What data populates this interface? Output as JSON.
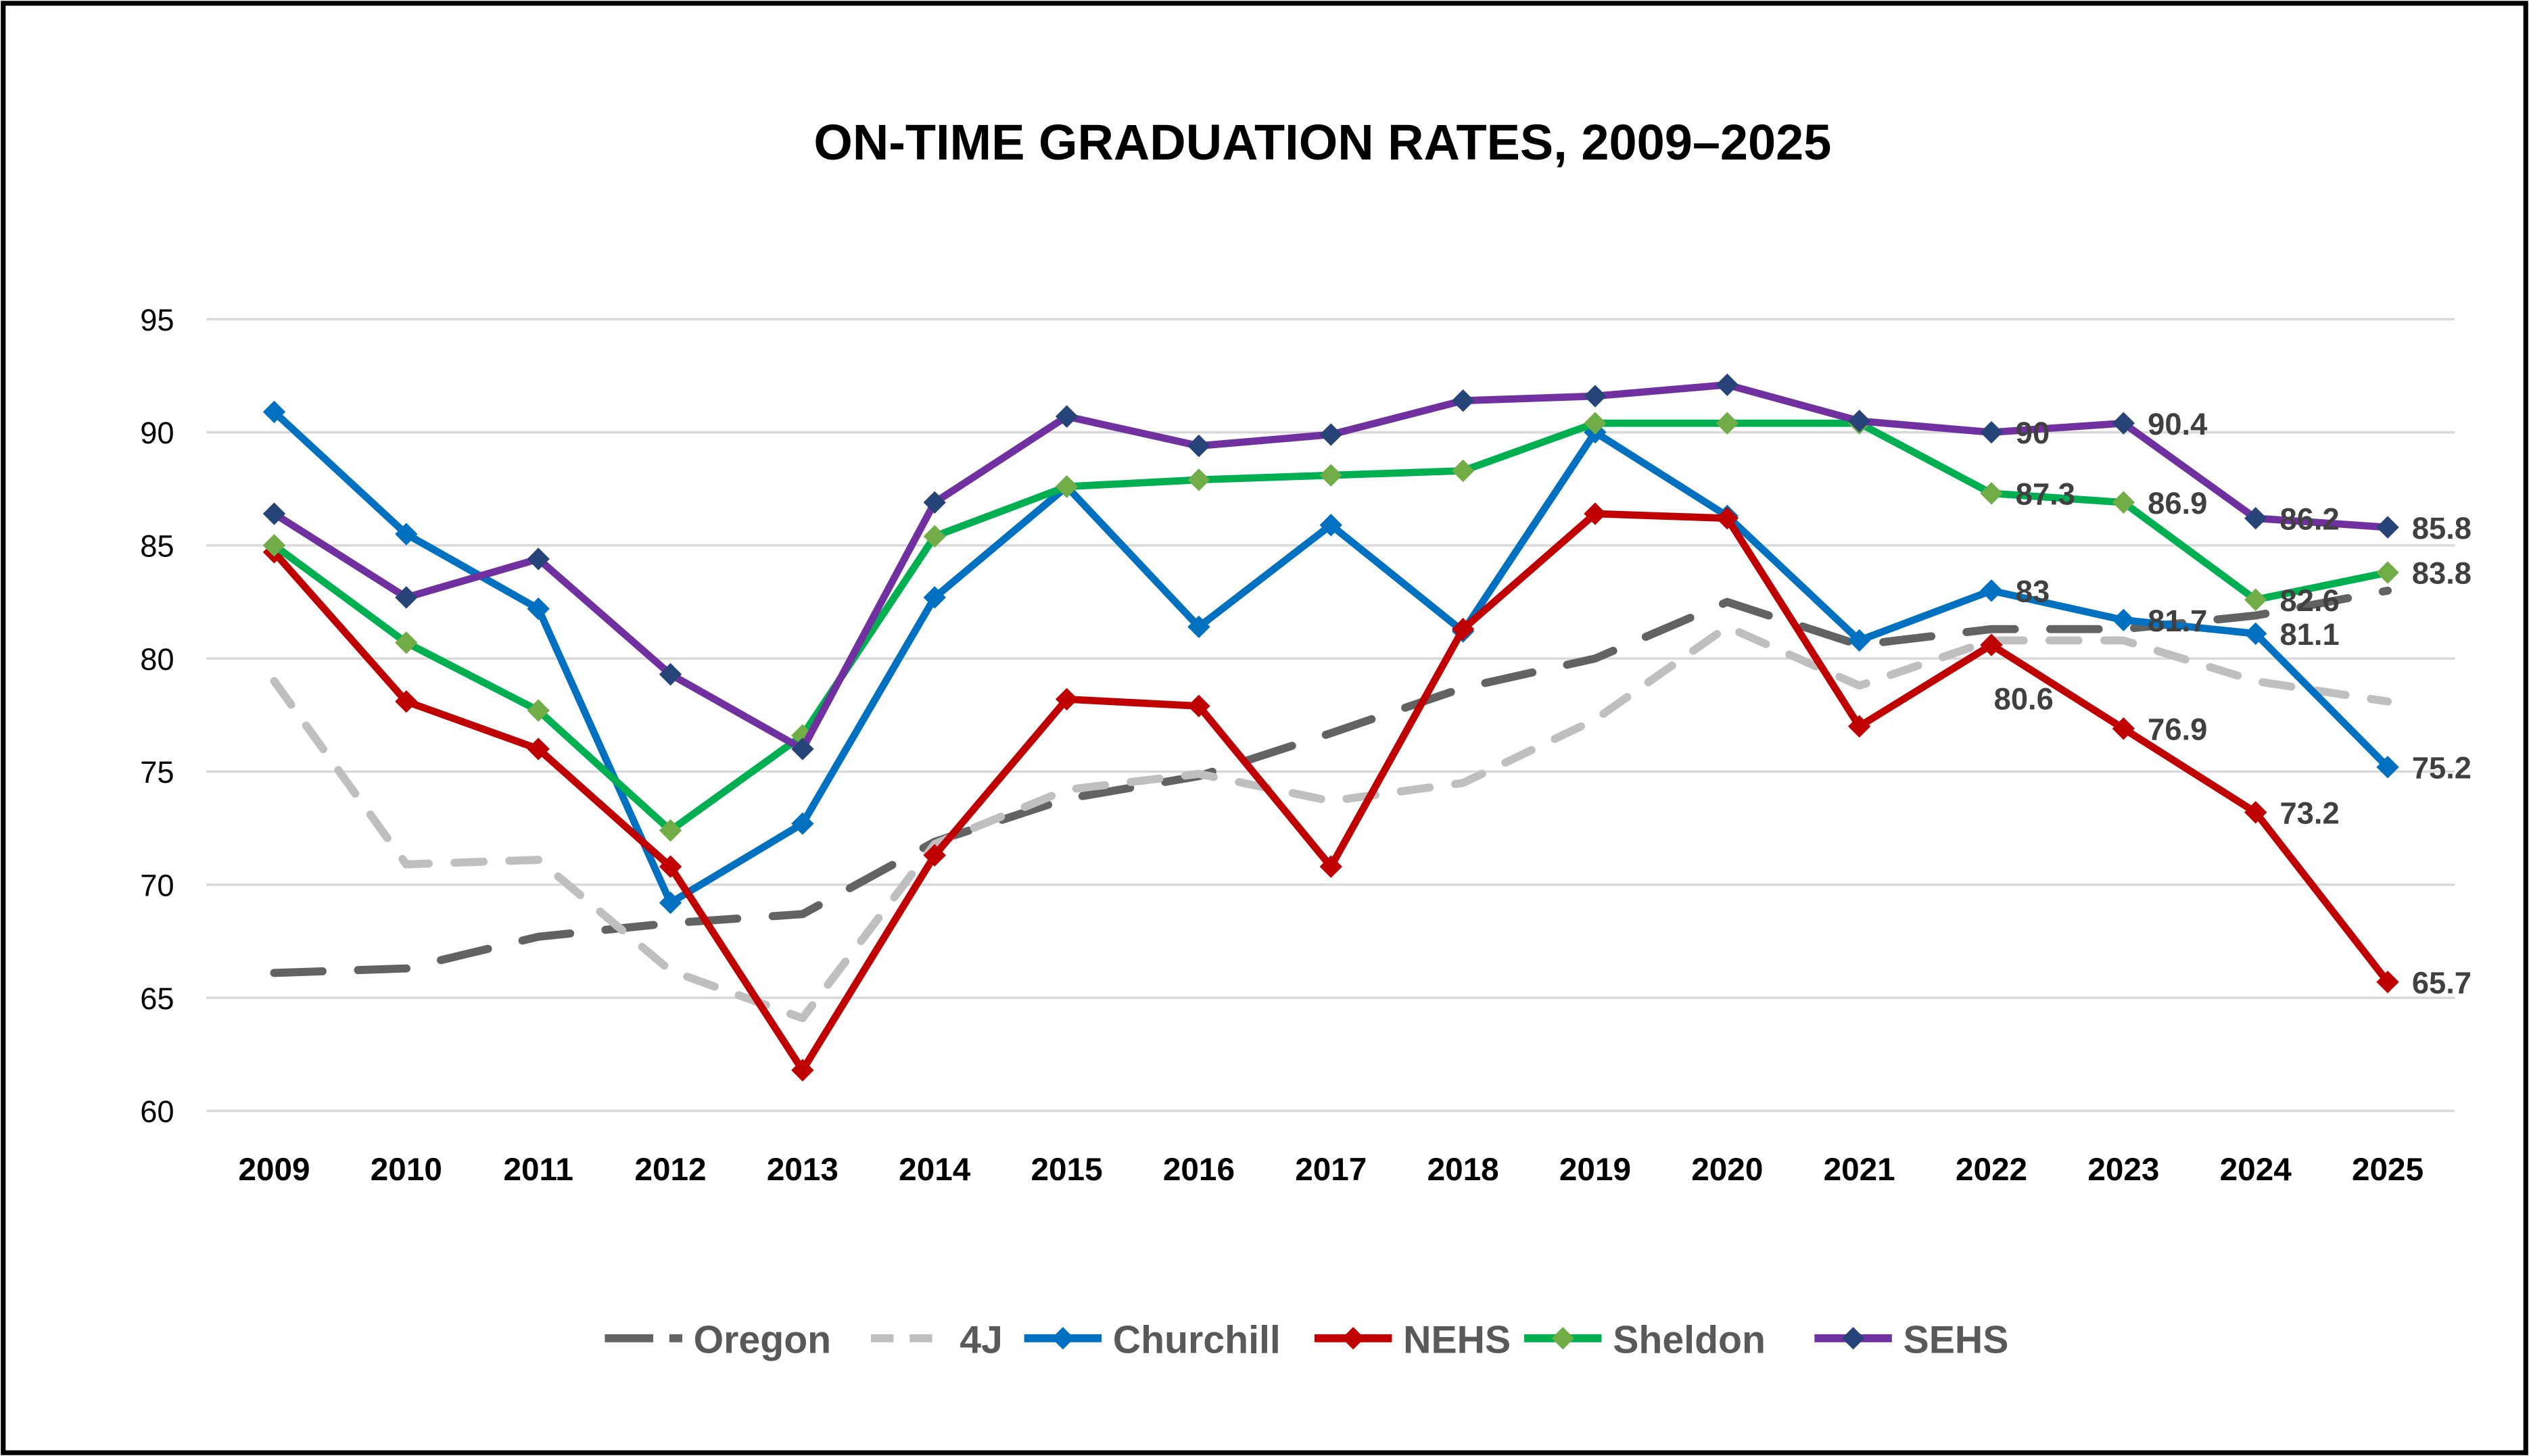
{
  "chart_data": {
    "type": "line",
    "title": "ON-TIME GRADUATION RATES, 2009–2025",
    "xlabel": "",
    "ylabel": "",
    "ylim": [
      60,
      95
    ],
    "yticks": [
      60,
      65,
      70,
      75,
      80,
      85,
      90,
      95
    ],
    "grid": true,
    "legend_position": "bottom",
    "categories": [
      "2009",
      "2010",
      "2011",
      "2012",
      "2013",
      "2014",
      "2015",
      "2016",
      "2017",
      "2018",
      "2019",
      "2020",
      "2021",
      "2022",
      "2023",
      "2024",
      "2025"
    ],
    "series": [
      {
        "name": "Oregon",
        "color": "#626262",
        "dash": "long-dash",
        "markers": false,
        "values": [
          66.1,
          66.3,
          67.7,
          68.3,
          68.7,
          71.9,
          73.8,
          74.8,
          76.7,
          78.7,
          80.0,
          82.5,
          80.6,
          81.3,
          81.3,
          81.9,
          83.0
        ],
        "labels": []
      },
      {
        "name": "4J",
        "color": "#bfbfbf",
        "dash": "dash",
        "markers": false,
        "values": [
          79.0,
          70.9,
          71.1,
          66.2,
          64.1,
          71.8,
          74.2,
          74.9,
          73.7,
          74.5,
          77.3,
          81.4,
          78.8,
          80.8,
          80.8,
          79.0,
          78.1
        ],
        "labels": []
      },
      {
        "name": "Churchill",
        "color": "#0070c0",
        "marker_color": "#0070c0",
        "dash": "solid",
        "markers": true,
        "values": [
          90.9,
          85.5,
          82.2,
          69.2,
          72.7,
          82.7,
          87.6,
          81.4,
          85.9,
          81.2,
          90.0,
          86.3,
          80.8,
          83.0,
          81.7,
          81.1,
          75.2
        ],
        "labels": [
          {
            "year": "2022",
            "text": "83"
          },
          {
            "year": "2023",
            "text": "81.7"
          },
          {
            "year": "2024",
            "text": "81.1"
          },
          {
            "year": "2025",
            "text": "75.2"
          }
        ]
      },
      {
        "name": "NEHS",
        "color": "#c00000",
        "marker_color": "#c00000",
        "dash": "solid",
        "markers": true,
        "values": [
          84.7,
          78.1,
          76.0,
          70.8,
          61.8,
          71.3,
          78.2,
          77.9,
          70.8,
          81.3,
          86.4,
          86.2,
          77.0,
          80.6,
          76.9,
          73.2,
          65.7
        ],
        "labels": [
          {
            "year": "2022",
            "text": "80.6"
          },
          {
            "year": "2023",
            "text": "76.9"
          },
          {
            "year": "2024",
            "text": "73.2"
          },
          {
            "year": "2025",
            "text": "65.7"
          }
        ]
      },
      {
        "name": "Sheldon",
        "color": "#00b050",
        "marker_color": "#70ad47",
        "dash": "solid",
        "markers": true,
        "values": [
          85.0,
          80.7,
          77.7,
          72.4,
          76.6,
          85.4,
          87.6,
          87.9,
          88.1,
          88.3,
          90.4,
          90.4,
          90.4,
          87.3,
          86.9,
          82.6,
          83.8
        ],
        "labels": [
          {
            "year": "2022",
            "text": "87.3"
          },
          {
            "year": "2023",
            "text": "86.9"
          },
          {
            "year": "2024",
            "text": "82.6"
          },
          {
            "year": "2025",
            "text": "83.8"
          }
        ]
      },
      {
        "name": "SEHS",
        "color": "#7030a0",
        "marker_color": "#264478",
        "dash": "solid",
        "markers": true,
        "values": [
          86.4,
          82.7,
          84.4,
          79.3,
          76.0,
          86.9,
          90.7,
          89.4,
          89.9,
          91.4,
          91.6,
          92.1,
          90.5,
          90.0,
          90.4,
          86.2,
          85.8
        ],
        "labels": [
          {
            "year": "2022",
            "text": "90"
          },
          {
            "year": "2023",
            "text": "90.4"
          },
          {
            "year": "2024",
            "text": "86.2"
          },
          {
            "year": "2025",
            "text": "85.8"
          }
        ]
      }
    ]
  }
}
